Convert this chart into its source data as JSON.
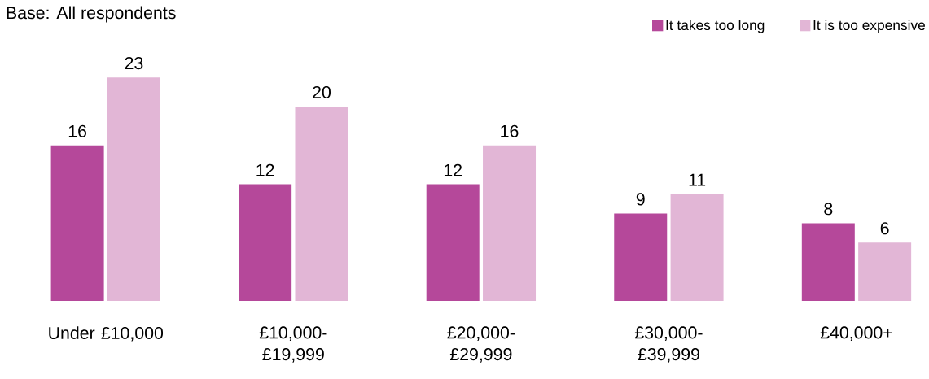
{
  "chart_data": {
    "type": "bar",
    "annotations": [
      "Base: All respondents"
    ],
    "categories": [
      "Under £10,000",
      "£10,000-£19,999",
      "£20,000-£29,999",
      "£30,000-£39,999",
      "£40,000+"
    ],
    "series": [
      {
        "name": "It takes too long",
        "color": "#b5489a",
        "values": [
          16,
          12,
          12,
          9,
          8
        ]
      },
      {
        "name": "It is too expensive",
        "color": "#e2b6d6",
        "values": [
          23,
          20,
          16,
          11,
          6
        ]
      }
    ],
    "data_labels": true,
    "legend": "top right"
  }
}
